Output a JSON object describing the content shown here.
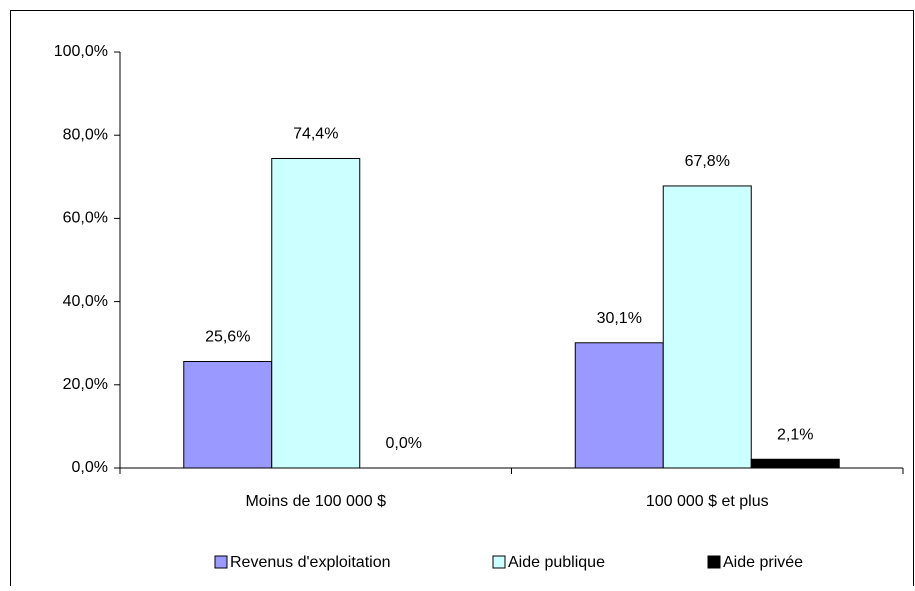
{
  "chart_data": {
    "type": "bar",
    "categories": [
      "Moins de 100 000 $",
      "100 000 $ et plus"
    ],
    "series": [
      {
        "name": "Revenus d'exploitation",
        "color": "#9999ff",
        "values": [
          25.6,
          30.1
        ],
        "value_labels": [
          "25,6%",
          "30,1%"
        ]
      },
      {
        "name": "Aide publique",
        "color": "#ccffff",
        "values": [
          74.4,
          67.8
        ],
        "value_labels": [
          "74,4%",
          "67,8%"
        ]
      },
      {
        "name": "Aide privée",
        "color": "#000000",
        "values": [
          0.0,
          2.1
        ],
        "value_labels": [
          "0,0%",
          "2,1%"
        ]
      }
    ],
    "ylim": [
      0,
      100
    ],
    "yticks": [
      {
        "value": 0,
        "label": "0,0%"
      },
      {
        "value": 20,
        "label": "20,0%"
      },
      {
        "value": 40,
        "label": "40,0%"
      },
      {
        "value": 60,
        "label": "60,0%"
      },
      {
        "value": 80,
        "label": "80,0%"
      },
      {
        "value": 100,
        "label": "100,0%"
      }
    ],
    "legend": "bottom"
  }
}
